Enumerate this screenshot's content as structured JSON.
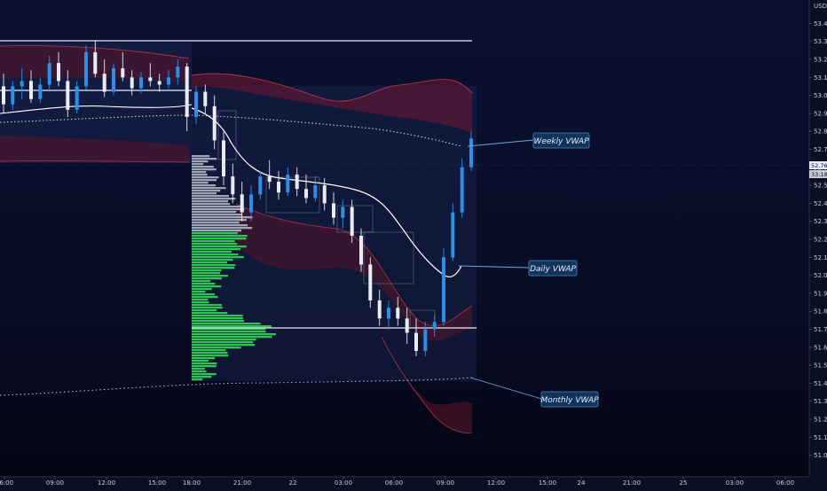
{
  "chart_data": {
    "type": "candlestick",
    "currency": "USD",
    "yAxis": {
      "min": 50.88,
      "max": 53.53,
      "ticks": [
        "53.40",
        "53.30",
        "53.20",
        "53.10",
        "53.00",
        "52.90",
        "52.80",
        "52.70",
        "52.60",
        "52.50",
        "52.40",
        "52.30",
        "52.20",
        "52.10",
        "52.00",
        "51.90",
        "51.80",
        "51.70",
        "51.60",
        "51.50",
        "51.40",
        "51.30",
        "51.20",
        "51.10",
        "51.00"
      ]
    },
    "xAxis": {
      "ticks": [
        "06:00",
        "09:00",
        "12:00",
        "15:00",
        "18:00",
        "21:00",
        "22",
        "03:00",
        "06:00",
        "09:00",
        "12:00",
        "15:00",
        "24",
        "21:00",
        "25",
        "03:00",
        "06:00"
      ]
    },
    "last_price": "52.76",
    "countdown": "33:18",
    "annotations": [
      "Weekly VWAP",
      "Daily VWAP",
      "Monthly VWAP"
    ],
    "horizontal_levels": [
      53.43,
      53.16,
      51.75
    ],
    "candles": [
      {
        "o": 53.05,
        "h": 53.12,
        "l": 52.9,
        "c": 52.95
      },
      {
        "o": 52.95,
        "h": 53.08,
        "l": 52.92,
        "c": 53.05
      },
      {
        "o": 53.05,
        "h": 53.15,
        "l": 52.98,
        "c": 53.08
      },
      {
        "o": 53.08,
        "h": 53.14,
        "l": 52.96,
        "c": 52.98
      },
      {
        "o": 52.98,
        "h": 53.1,
        "l": 52.96,
        "c": 53.06
      },
      {
        "o": 53.06,
        "h": 53.22,
        "l": 53.02,
        "c": 53.18
      },
      {
        "o": 53.18,
        "h": 53.24,
        "l": 53.05,
        "c": 53.08
      },
      {
        "o": 53.08,
        "h": 53.14,
        "l": 52.88,
        "c": 52.92
      },
      {
        "o": 52.92,
        "h": 53.08,
        "l": 52.9,
        "c": 53.05
      },
      {
        "o": 53.05,
        "h": 53.28,
        "l": 53.03,
        "c": 53.24
      },
      {
        "o": 53.24,
        "h": 53.3,
        "l": 53.1,
        "c": 53.12
      },
      {
        "o": 53.12,
        "h": 53.2,
        "l": 52.99,
        "c": 53.02
      },
      {
        "o": 53.02,
        "h": 53.18,
        "l": 53.0,
        "c": 53.15
      },
      {
        "o": 53.15,
        "h": 53.24,
        "l": 53.08,
        "c": 53.1
      },
      {
        "o": 53.1,
        "h": 53.14,
        "l": 53.0,
        "c": 53.04
      },
      {
        "o": 53.04,
        "h": 53.13,
        "l": 53.01,
        "c": 53.1
      },
      {
        "o": 53.1,
        "h": 53.18,
        "l": 53.05,
        "c": 53.08
      },
      {
        "o": 53.08,
        "h": 53.12,
        "l": 53.02,
        "c": 53.06
      },
      {
        "o": 53.06,
        "h": 53.14,
        "l": 53.04,
        "c": 53.1
      },
      {
        "o": 53.1,
        "h": 53.2,
        "l": 53.06,
        "c": 53.16
      },
      {
        "o": 53.16,
        "h": 53.18,
        "l": 52.8,
        "c": 52.88
      },
      {
        "o": 52.88,
        "h": 53.05,
        "l": 52.84,
        "c": 53.02
      },
      {
        "o": 53.02,
        "h": 53.06,
        "l": 52.9,
        "c": 52.94
      },
      {
        "o": 52.94,
        "h": 53.0,
        "l": 52.7,
        "c": 52.75
      },
      {
        "o": 52.75,
        "h": 52.8,
        "l": 52.5,
        "c": 52.55
      },
      {
        "o": 52.55,
        "h": 52.62,
        "l": 52.4,
        "c": 52.45
      },
      {
        "o": 52.45,
        "h": 52.52,
        "l": 52.3,
        "c": 52.35
      },
      {
        "o": 52.35,
        "h": 52.5,
        "l": 52.3,
        "c": 52.45
      },
      {
        "o": 52.45,
        "h": 52.58,
        "l": 52.42,
        "c": 52.55
      },
      {
        "o": 52.55,
        "h": 52.64,
        "l": 52.48,
        "c": 52.52
      },
      {
        "o": 52.52,
        "h": 52.58,
        "l": 52.42,
        "c": 52.46
      },
      {
        "o": 52.46,
        "h": 52.6,
        "l": 52.44,
        "c": 52.56
      },
      {
        "o": 52.56,
        "h": 52.6,
        "l": 52.44,
        "c": 52.48
      },
      {
        "o": 52.48,
        "h": 52.56,
        "l": 52.4,
        "c": 52.43
      },
      {
        "o": 52.43,
        "h": 52.55,
        "l": 52.41,
        "c": 52.5
      },
      {
        "o": 52.5,
        "h": 52.54,
        "l": 52.36,
        "c": 52.4
      },
      {
        "o": 52.4,
        "h": 52.46,
        "l": 52.28,
        "c": 52.32
      },
      {
        "o": 52.32,
        "h": 52.42,
        "l": 52.26,
        "c": 52.38
      },
      {
        "o": 52.38,
        "h": 52.42,
        "l": 52.18,
        "c": 52.22
      },
      {
        "o": 52.22,
        "h": 52.26,
        "l": 52.02,
        "c": 52.06
      },
      {
        "o": 52.06,
        "h": 52.1,
        "l": 51.82,
        "c": 51.86
      },
      {
        "o": 51.86,
        "h": 51.92,
        "l": 51.72,
        "c": 51.76
      },
      {
        "o": 51.76,
        "h": 51.86,
        "l": 51.7,
        "c": 51.82
      },
      {
        "o": 51.82,
        "h": 51.88,
        "l": 51.72,
        "c": 51.76
      },
      {
        "o": 51.76,
        "h": 51.82,
        "l": 51.62,
        "c": 51.68
      },
      {
        "o": 51.68,
        "h": 51.76,
        "l": 51.55,
        "c": 51.58
      },
      {
        "o": 51.58,
        "h": 51.74,
        "l": 51.55,
        "c": 51.7
      },
      {
        "o": 51.7,
        "h": 51.78,
        "l": 51.66,
        "c": 51.74
      },
      {
        "o": 51.74,
        "h": 52.15,
        "l": 51.72,
        "c": 52.1
      },
      {
        "o": 52.1,
        "h": 52.4,
        "l": 52.08,
        "c": 52.35
      },
      {
        "o": 52.35,
        "h": 52.65,
        "l": 52.32,
        "c": 52.6
      },
      {
        "o": 52.6,
        "h": 52.8,
        "l": 52.58,
        "c": 52.76
      }
    ]
  }
}
